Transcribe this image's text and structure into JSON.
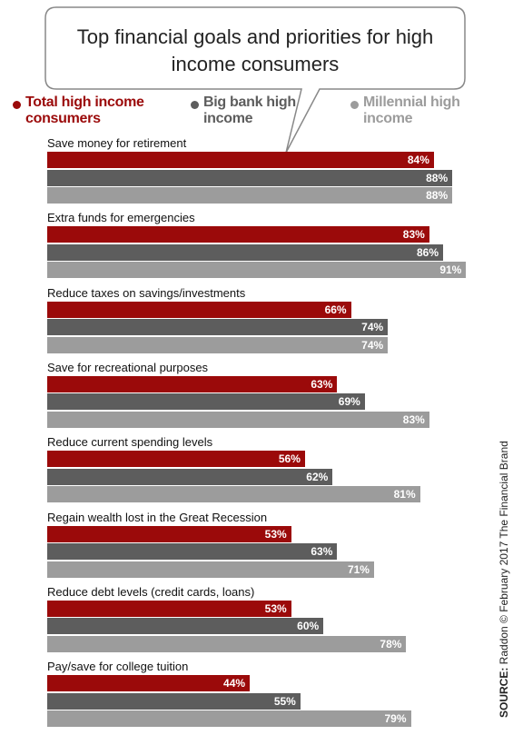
{
  "chart_data": {
    "type": "bar",
    "title": "Top financial goals and priorities for high income consumers",
    "source_label": "SOURCE:",
    "source": "Raddon © February 2017 The Financial Brand",
    "categories": [
      "Save money for retirement",
      "Extra funds for emergencies",
      "Reduce taxes on savings/investments",
      "Save for recreational purposes",
      "Reduce current spending levels",
      "Regain wealth lost in the Great Recession",
      "Reduce debt levels (credit cards, loans)",
      "Pay/save for college tuition"
    ],
    "series": [
      {
        "name": "Total high income consumers",
        "color": "#9b0a0a",
        "values": [
          84,
          83,
          66,
          63,
          56,
          53,
          53,
          44
        ],
        "value_labels": [
          "84%",
          "83%",
          "66%",
          "63%",
          "56%",
          "53%",
          "53%",
          "44%"
        ]
      },
      {
        "name": "Big bank high income",
        "color": "#5d5d5d",
        "values": [
          88,
          86,
          74,
          69,
          62,
          63,
          60,
          55
        ],
        "value_labels": [
          "88%",
          "86%",
          "74%",
          "69%",
          "62%",
          "63%",
          "60%",
          "55%"
        ]
      },
      {
        "name": "Millennial high income",
        "color": "#9c9c9c",
        "values": [
          88,
          91,
          74,
          83,
          81,
          71,
          78,
          79
        ],
        "value_labels": [
          "88%",
          "91%",
          "74%",
          "83%",
          "81%",
          "71%",
          "78%",
          "79%"
        ]
      }
    ]
  }
}
